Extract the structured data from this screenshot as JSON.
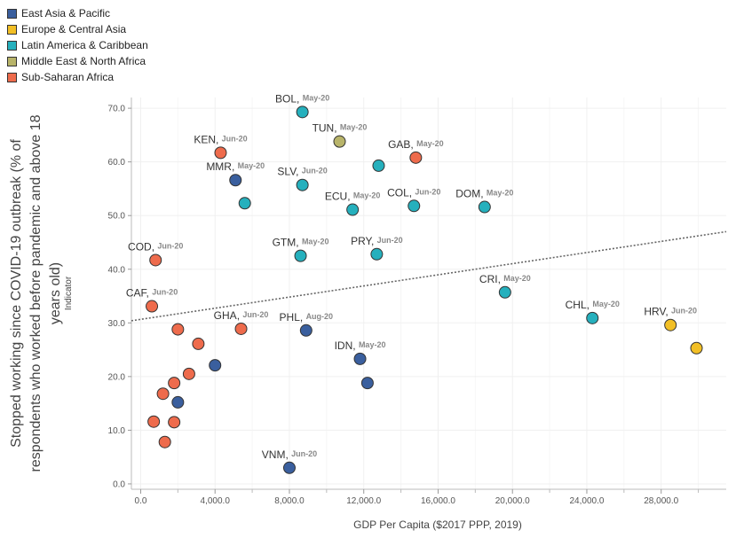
{
  "legend": {
    "items": [
      {
        "label": "East Asia & Pacific",
        "color": "#3a5f9e"
      },
      {
        "label": "Europe & Central Asia",
        "color": "#f2bf25"
      },
      {
        "label": "Latin America & Caribbean",
        "color": "#25b0bd"
      },
      {
        "label": "Middle East & North Africa",
        "color": "#b8b46a"
      },
      {
        "label": "Sub-Saharan Africa",
        "color": "#ee6b4c"
      }
    ]
  },
  "chart_data": {
    "type": "scatter",
    "xlabel": "GDP Per Capita ($2017 PPP, 2019)",
    "ylabel_lines": [
      "Stopped working since COVID-19 outbreak (% of",
      "respondents who worked before pandemic and above 18",
      "years old)"
    ],
    "ylabel_sub": "Indicator",
    "xlim": [
      -500,
      31500
    ],
    "ylim": [
      -1,
      72
    ],
    "xticks": [
      0,
      4000,
      8000,
      12000,
      16000,
      20000,
      24000,
      28000
    ],
    "xtick_labels": [
      "0.0",
      "4,000.0",
      "8,000.0",
      "12,000.0",
      "16,000.0",
      "20,000.0",
      "24,000.0",
      "28,000.0"
    ],
    "yticks": [
      0,
      10,
      20,
      30,
      40,
      50,
      60,
      70
    ],
    "ytick_labels": [
      "0.0",
      "10.0",
      "20.0",
      "30.0",
      "40.0",
      "50.0",
      "60.0",
      "70.0"
    ],
    "trendline": {
      "x": [
        -500,
        31500
      ],
      "y": [
        30.4,
        47.0
      ]
    },
    "points": [
      {
        "region": 2,
        "x": 8700,
        "y": 69.3,
        "code": "BOL",
        "date": "May-20"
      },
      {
        "region": 3,
        "x": 10700,
        "y": 63.8,
        "code": "TUN",
        "date": "May-20"
      },
      {
        "region": 4,
        "x": 4300,
        "y": 61.7,
        "code": "KEN",
        "date": "Jun-20"
      },
      {
        "region": 4,
        "x": 14800,
        "y": 60.8,
        "code": "GAB",
        "date": "May-20"
      },
      {
        "region": 2,
        "x": 12800,
        "y": 59.3,
        "code": "",
        "date": ""
      },
      {
        "region": 0,
        "x": 5100,
        "y": 56.6,
        "code": "MMR",
        "date": "May-20"
      },
      {
        "region": 2,
        "x": 8700,
        "y": 55.7,
        "code": "SLV",
        "date": "Jun-20"
      },
      {
        "region": 2,
        "x": 5600,
        "y": 52.3,
        "code": "",
        "date": ""
      },
      {
        "region": 2,
        "x": 14700,
        "y": 51.8,
        "code": "COL",
        "date": "Jun-20"
      },
      {
        "region": 2,
        "x": 18500,
        "y": 51.6,
        "code": "DOM",
        "date": "May-20"
      },
      {
        "region": 2,
        "x": 11400,
        "y": 51.1,
        "code": "ECU",
        "date": "May-20"
      },
      {
        "region": 2,
        "x": 12700,
        "y": 42.8,
        "code": "PRY",
        "date": "Jun-20"
      },
      {
        "region": 2,
        "x": 8600,
        "y": 42.5,
        "code": "GTM",
        "date": "May-20"
      },
      {
        "region": 4,
        "x": 800,
        "y": 41.7,
        "code": "COD",
        "date": "Jun-20"
      },
      {
        "region": 2,
        "x": 19600,
        "y": 35.7,
        "code": "CRI",
        "date": "May-20"
      },
      {
        "region": 4,
        "x": 600,
        "y": 33.1,
        "code": "CAF",
        "date": "Jun-20"
      },
      {
        "region": 2,
        "x": 24300,
        "y": 30.9,
        "code": "CHL",
        "date": "May-20"
      },
      {
        "region": 1,
        "x": 28500,
        "y": 29.6,
        "code": "HRV",
        "date": "Jun-20"
      },
      {
        "region": 4,
        "x": 5400,
        "y": 28.9,
        "code": "GHA",
        "date": "Jun-20"
      },
      {
        "region": 4,
        "x": 2000,
        "y": 28.8,
        "code": "",
        "date": ""
      },
      {
        "region": 0,
        "x": 8900,
        "y": 28.6,
        "code": "PHL",
        "date": "Aug-20"
      },
      {
        "region": 1,
        "x": 29900,
        "y": 25.3,
        "code": "",
        "date": ""
      },
      {
        "region": 4,
        "x": 3100,
        "y": 26.1,
        "code": "",
        "date": ""
      },
      {
        "region": 0,
        "x": 11800,
        "y": 23.3,
        "code": "IDN",
        "date": "May-20"
      },
      {
        "region": 0,
        "x": 4000,
        "y": 22.1,
        "code": "",
        "date": ""
      },
      {
        "region": 4,
        "x": 2600,
        "y": 20.5,
        "code": "",
        "date": ""
      },
      {
        "region": 4,
        "x": 1800,
        "y": 18.8,
        "code": "",
        "date": ""
      },
      {
        "region": 0,
        "x": 12200,
        "y": 18.8,
        "code": "",
        "date": ""
      },
      {
        "region": 4,
        "x": 1200,
        "y": 16.8,
        "code": "",
        "date": ""
      },
      {
        "region": 0,
        "x": 2000,
        "y": 15.2,
        "code": "",
        "date": ""
      },
      {
        "region": 4,
        "x": 700,
        "y": 11.6,
        "code": "",
        "date": ""
      },
      {
        "region": 4,
        "x": 1800,
        "y": 11.5,
        "code": "",
        "date": ""
      },
      {
        "region": 4,
        "x": 1300,
        "y": 7.8,
        "code": "",
        "date": ""
      },
      {
        "region": 0,
        "x": 8000,
        "y": 3.0,
        "code": "VNM",
        "date": "Jun-20"
      }
    ]
  }
}
